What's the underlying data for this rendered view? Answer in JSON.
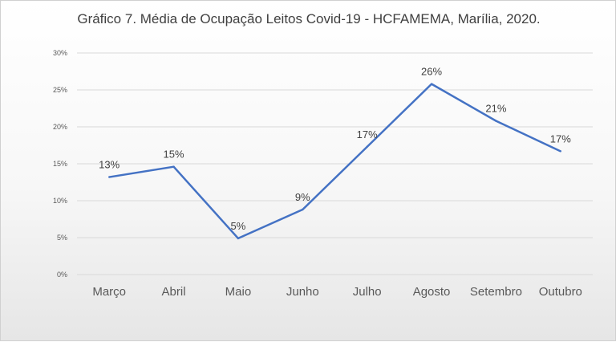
{
  "chart_data": {
    "type": "line",
    "title": "Gráfico 7. Média de Ocupação Leitos Covid-19 - HCFAMEMA, Marília, 2020.",
    "categories": [
      "Março",
      "Abril",
      "Maio",
      "Junho",
      "Julho",
      "Agosto",
      "Setembro",
      "Outubro"
    ],
    "series": [
      {
        "values": [
          13.2,
          14.6,
          4.9,
          8.8,
          17.3,
          25.8,
          20.8,
          16.7
        ],
        "data_labels": [
          "13%",
          "15%",
          "5%",
          "9%",
          "17%",
          "26%",
          "21%",
          "17%"
        ]
      }
    ],
    "y_ticks": [
      "0%",
      "5%",
      "10%",
      "15%",
      "20%",
      "25%",
      "30%"
    ],
    "ylim": [
      0,
      30
    ],
    "grid": true,
    "line_color": "#4472c4"
  }
}
